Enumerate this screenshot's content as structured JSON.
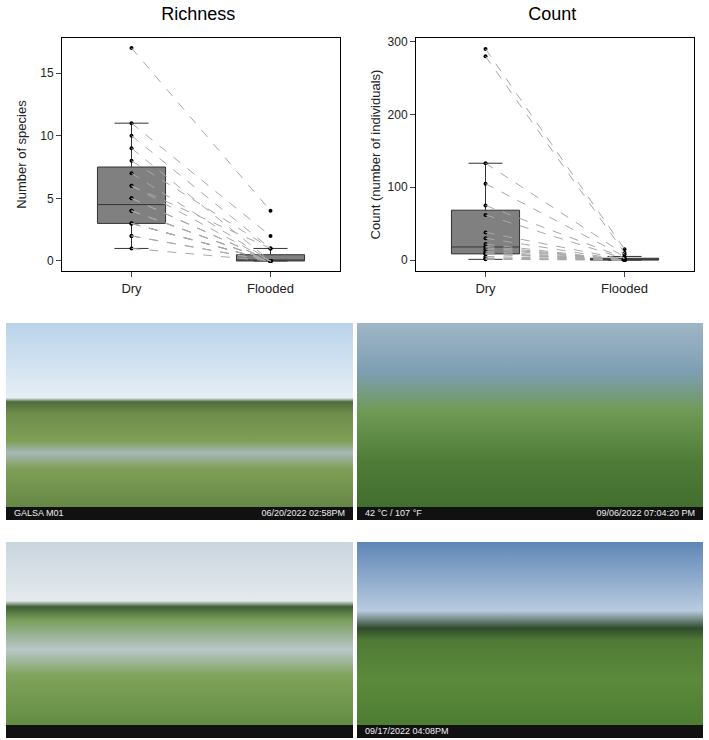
{
  "chart_data": [
    {
      "type": "box",
      "title": "Richness",
      "y_label": "Number of species",
      "categories": [
        "Dry",
        "Flooded"
      ],
      "values": [
        [
          17,
          11,
          10,
          9,
          8,
          7,
          6,
          6,
          5,
          5,
          4,
          4,
          4,
          3,
          3,
          3,
          3,
          2,
          2,
          1
        ],
        [
          4,
          2,
          1,
          0,
          1,
          0,
          1,
          0,
          0,
          0,
          0,
          0,
          0,
          0,
          0,
          0,
          0,
          0,
          0,
          0
        ]
      ],
      "color": "#808080",
      "line_style": "dashed",
      "grid": false,
      "ylim": [
        -0.8,
        17.8
      ],
      "yticks": [
        0,
        5,
        10,
        15
      ]
    },
    {
      "type": "box",
      "title": "Count",
      "y_label": "Count (number of individuals)",
      "categories": [
        "Dry",
        "Flooded"
      ],
      "values": [
        [
          290,
          280,
          133,
          105,
          75,
          62,
          38,
          30,
          22,
          19,
          17,
          15,
          12,
          10,
          9,
          8,
          5,
          3,
          2,
          1
        ],
        [
          15,
          10,
          8,
          5,
          3,
          2,
          1,
          0,
          0,
          0,
          0,
          0,
          0,
          0,
          0,
          0,
          0,
          0,
          0,
          0
        ]
      ],
      "color": "#808080",
      "line_style": "dashed",
      "grid": false,
      "ylim": [
        -15,
        305
      ],
      "yticks": [
        0,
        100,
        200,
        300
      ]
    }
  ],
  "photos": [
    {
      "overlay": [
        "GALSA M01",
        "06/20/2022 02:58PM"
      ]
    },
    {
      "overlay": [
        "42 °C / 107 °F",
        "09/06/2022 07:04:20 PM"
      ]
    },
    {
      "overlay": []
    },
    {
      "overlay": [
        "09/17/2022 04:08PM"
      ]
    }
  ]
}
